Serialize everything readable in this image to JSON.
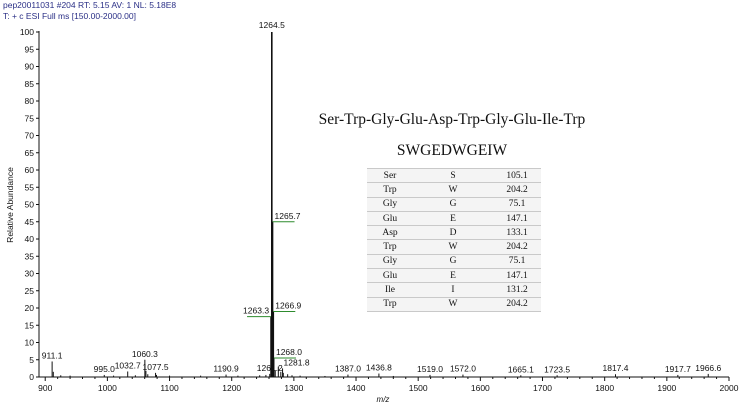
{
  "header": {
    "line1": "pep20011031 #204   RT: 5.15   AV: 1   NL: 5.18E8",
    "line2": "T: + c ESI Full ms [150.00-2000.00]"
  },
  "peptide": {
    "title": "Ser-Trp-Gly-Glu-Asp-Trp-Gly-Glu-Ile-Trp",
    "code": "SWGEDWGEIW",
    "rows": [
      [
        "Ser",
        "S",
        "105.1"
      ],
      [
        "Trp",
        "W",
        "204.2"
      ],
      [
        "Gly",
        "G",
        "75.1"
      ],
      [
        "Glu",
        "E",
        "147.1"
      ],
      [
        "Asp",
        "D",
        "133.1"
      ],
      [
        "Trp",
        "W",
        "204.2"
      ],
      [
        "Gly",
        "G",
        "75.1"
      ],
      [
        "Glu",
        "E",
        "147.1"
      ],
      [
        "Ile",
        "I",
        "131.2"
      ],
      [
        "Trp",
        "W",
        "204.2"
      ]
    ]
  },
  "chart_data": {
    "type": "bar",
    "xlabel": "m/z",
    "ylabel": "Relative Abundance",
    "xlim": [
      890,
      2000
    ],
    "ylim": [
      0,
      100
    ],
    "xticks": [
      900,
      1000,
      1100,
      1200,
      1300,
      1400,
      1500,
      1600,
      1700,
      1800,
      1900,
      2000
    ],
    "yticks": [
      0,
      5,
      10,
      15,
      20,
      25,
      30,
      35,
      40,
      45,
      50,
      55,
      60,
      65,
      70,
      75,
      80,
      85,
      90,
      95,
      100
    ],
    "labeled_peaks": [
      {
        "mz": 911.1,
        "label": "911.1",
        "intensity": 4.5
      },
      {
        "mz": 995.0,
        "label": "995.0",
        "intensity": 0.6
      },
      {
        "mz": 1032.7,
        "label": "1032.7",
        "intensity": 1.6
      },
      {
        "mz": 1060.3,
        "label": "1060.3",
        "intensity": 5.0
      },
      {
        "mz": 1077.5,
        "label": "1077.5",
        "intensity": 1.2
      },
      {
        "mz": 1190.9,
        "label": "1190.9",
        "intensity": 0.7
      },
      {
        "mz": 1261.2,
        "label": "1261.2",
        "intensity": 0.9
      },
      {
        "mz": 1263.3,
        "label": "1263.3",
        "intensity": 17.5
      },
      {
        "mz": 1264.5,
        "label": "1264.5",
        "intensity": 100
      },
      {
        "mz": 1265.7,
        "label": "1265.7",
        "intensity": 45
      },
      {
        "mz": 1266.9,
        "label": "1266.9",
        "intensity": 19
      },
      {
        "mz": 1268.0,
        "label": "1268.0",
        "intensity": 5.5
      },
      {
        "mz": 1281.8,
        "label": "1281.8",
        "intensity": 2.5
      },
      {
        "mz": 1387.0,
        "label": "1387.0",
        "intensity": 0.7
      },
      {
        "mz": 1436.8,
        "label": "1436.8",
        "intensity": 1.0
      },
      {
        "mz": 1519.0,
        "label": "1519.0",
        "intensity": 0.6
      },
      {
        "mz": 1572.0,
        "label": "1572.0",
        "intensity": 0.7
      },
      {
        "mz": 1665.1,
        "label": "1665.1",
        "intensity": 0.5
      },
      {
        "mz": 1723.5,
        "label": "1723.5",
        "intensity": 0.5
      },
      {
        "mz": 1817.4,
        "label": "1817.4",
        "intensity": 0.8
      },
      {
        "mz": 1917.7,
        "label": "1917.7",
        "intensity": 0.6
      },
      {
        "mz": 1966.6,
        "label": "1966.6",
        "intensity": 0.9
      }
    ],
    "minor_peaks": [
      {
        "mz": 913.0,
        "intensity": 1.5
      },
      {
        "mz": 925.0,
        "intensity": 0.5
      },
      {
        "mz": 940.0,
        "intensity": 0.4
      },
      {
        "mz": 1010.0,
        "intensity": 0.4
      },
      {
        "mz": 1045.0,
        "intensity": 0.5
      },
      {
        "mz": 1062.0,
        "intensity": 1.8
      },
      {
        "mz": 1065.0,
        "intensity": 0.8
      },
      {
        "mz": 1079.0,
        "intensity": 0.6
      },
      {
        "mz": 1100.0,
        "intensity": 0.4
      },
      {
        "mz": 1150.0,
        "intensity": 0.4
      },
      {
        "mz": 1210.0,
        "intensity": 0.4
      },
      {
        "mz": 1245.0,
        "intensity": 0.5
      },
      {
        "mz": 1255.0,
        "intensity": 0.6
      },
      {
        "mz": 1270.0,
        "intensity": 2.0
      },
      {
        "mz": 1275.0,
        "intensity": 3.0
      },
      {
        "mz": 1279.0,
        "intensity": 1.5
      },
      {
        "mz": 1283.0,
        "intensity": 1.2
      },
      {
        "mz": 1290.0,
        "intensity": 0.8
      },
      {
        "mz": 1297.0,
        "intensity": 0.5
      },
      {
        "mz": 1310.0,
        "intensity": 0.4
      },
      {
        "mz": 1350.0,
        "intensity": 0.3
      },
      {
        "mz": 1460.0,
        "intensity": 0.3
      }
    ]
  }
}
